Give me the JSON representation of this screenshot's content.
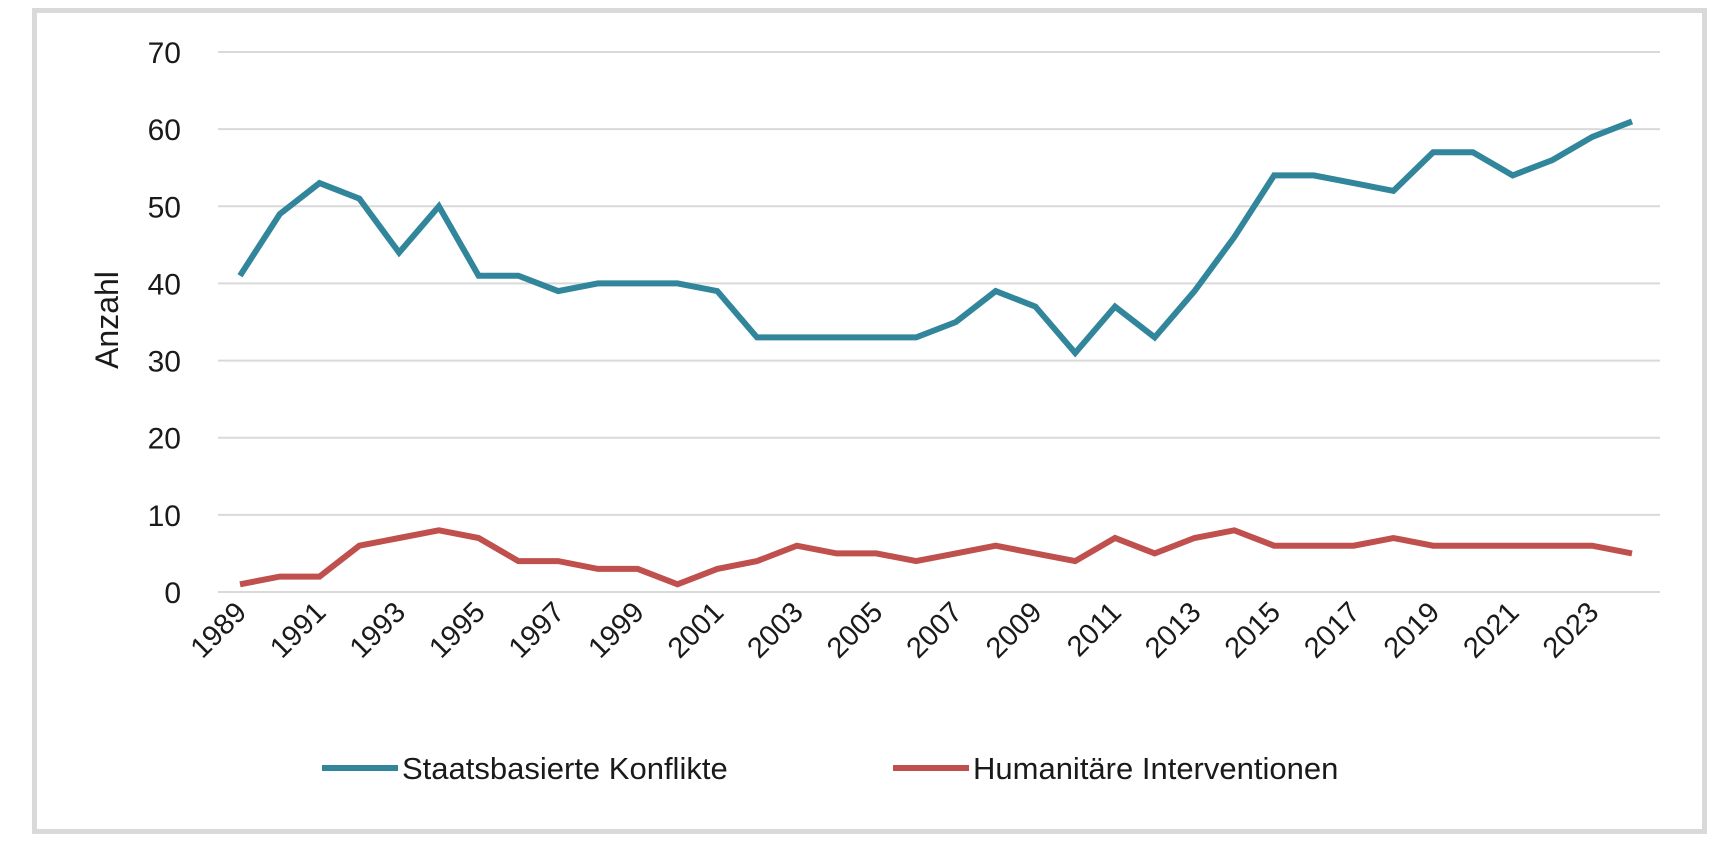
{
  "chart_data": {
    "type": "line",
    "title": "",
    "xlabel": "",
    "ylabel": "Anzahl",
    "ylim": [
      0,
      70
    ],
    "yticks": [
      0,
      10,
      20,
      30,
      40,
      50,
      60,
      70
    ],
    "grid": "horizontal",
    "legend_position": "bottom",
    "x": [
      1989,
      1990,
      1991,
      1992,
      1993,
      1994,
      1995,
      1996,
      1997,
      1998,
      1999,
      2000,
      2001,
      2002,
      2003,
      2004,
      2005,
      2006,
      2007,
      2008,
      2009,
      2010,
      2011,
      2012,
      2013,
      2014,
      2015,
      2016,
      2017,
      2018,
      2019,
      2020,
      2021,
      2022,
      2023,
      2024
    ],
    "xtick_labels": [
      "1989",
      "1991",
      "1993",
      "1995",
      "1997",
      "1999",
      "2001",
      "2003",
      "2005",
      "2007",
      "2009",
      "2011",
      "2013",
      "2015",
      "2017",
      "2019",
      "2021",
      "2023"
    ],
    "series": [
      {
        "name": "Staatsbasierte Konflikte",
        "color": "#31869b",
        "values": [
          41,
          49,
          53,
          51,
          44,
          50,
          41,
          41,
          39,
          40,
          40,
          40,
          39,
          33,
          33,
          33,
          33,
          33,
          35,
          39,
          37,
          31,
          37,
          33,
          39,
          46,
          54,
          54,
          53,
          52,
          57,
          57,
          54,
          56,
          59,
          61
        ]
      },
      {
        "name": "Humanitäre Interventionen",
        "color": "#c0504d",
        "values": [
          1,
          2,
          2,
          6,
          7,
          8,
          7,
          4,
          4,
          3,
          3,
          1,
          3,
          4,
          6,
          5,
          5,
          4,
          5,
          6,
          5,
          4,
          7,
          5,
          7,
          8,
          6,
          6,
          6,
          7,
          6,
          6,
          6,
          6,
          6,
          5
        ]
      }
    ]
  },
  "colors": {
    "grid": "#d9d9d9",
    "frame": "#d9d9d9",
    "text": "#1a1a1a"
  }
}
